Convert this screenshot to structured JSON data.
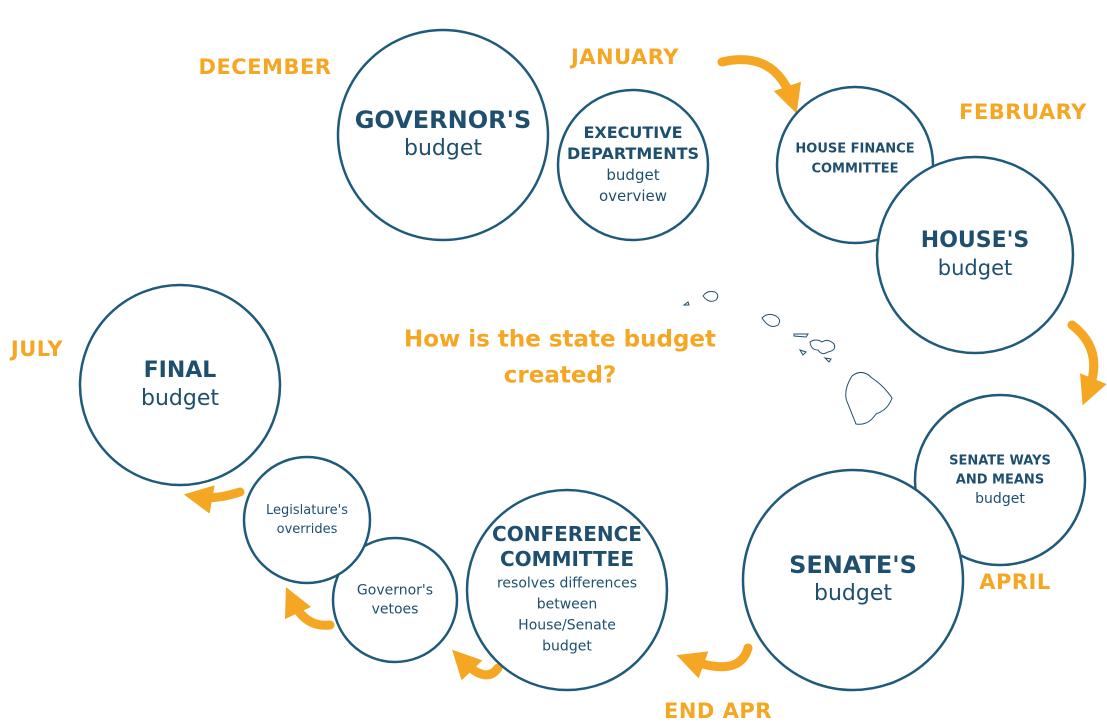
{
  "title": [
    "How is the state budget",
    "created?"
  ],
  "months": [
    "DECEMBER",
    "JANUARY",
    "FEBRUARY",
    "JULY",
    "APRIL",
    "END APR"
  ],
  "nodes": [
    {
      "heading": [
        "GOVERNOR'S"
      ],
      "body": [
        "budget"
      ]
    },
    {
      "heading": [
        "EXECUTIVE",
        "DEPARTMENTS"
      ],
      "body": [
        "budget",
        "overview"
      ]
    },
    {
      "heading": [
        "HOUSE FINANCE",
        "COMMITTEE"
      ],
      "body": []
    },
    {
      "heading": [
        "HOUSE'S"
      ],
      "body": [
        "budget"
      ]
    },
    {
      "heading": [
        "SENATE WAYS",
        "AND MEANS"
      ],
      "body": [
        "budget"
      ]
    },
    {
      "heading": [
        "SENATE'S"
      ],
      "body": [
        "budget"
      ]
    },
    {
      "heading": [
        "CONFERENCE",
        "COMMITTEE"
      ],
      "body": [
        "resolves differences",
        "between",
        "House/Senate",
        "budget"
      ]
    },
    {
      "heading": [],
      "body": [
        "Governor's",
        "vetoes"
      ]
    },
    {
      "heading": [],
      "body": [
        "Legislature's",
        "overrides"
      ]
    },
    {
      "heading": [
        "FINAL"
      ],
      "body": [
        "budget"
      ]
    }
  ]
}
